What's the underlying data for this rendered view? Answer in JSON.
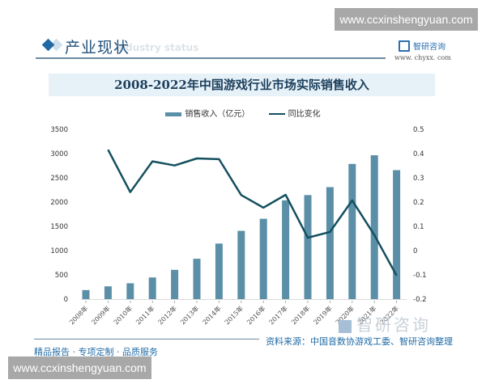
{
  "watermark": {
    "top": "www.ccxinshengyuan.com",
    "bottom": "www.ccxinshengyuan.com"
  },
  "section": {
    "title": "产业现状",
    "ghost_text": "Industry status"
  },
  "brand": {
    "name": "智研咨询",
    "url": "www. chyxx. com",
    "ghost_name": "智研咨询"
  },
  "footer": {
    "source": "资料来源：中国音数协游戏工委、智研咨询整理",
    "slogan": "精品报告 · 专项定制 · 品质服务"
  },
  "colors": {
    "bar": "#5b8fa8",
    "line": "#14505f",
    "title_band": "#e6f1f8",
    "accent": "#1f6aa5"
  },
  "chart_data": {
    "type": "bar+line",
    "title": "2008-2022年中国游戏行业市场实际销售收入",
    "legend": [
      "销售收入（亿元）",
      "同比变化"
    ],
    "legend_position": "top",
    "categories": [
      "2008年",
      "2009年",
      "2010年",
      "2011年",
      "2012年",
      "2013年",
      "2014年",
      "2015年",
      "2016年",
      "2017年",
      "2018年",
      "2019年",
      "2020年",
      "2021年",
      "2022年"
    ],
    "series": [
      {
        "name": "销售收入（亿元）",
        "type": "bar",
        "axis": "left",
        "values": [
          185.6,
          262.8,
          326.2,
          446.1,
          602.8,
          831.7,
          1144.8,
          1407.0,
          1655.7,
          2036.1,
          2144.4,
          2308.8,
          2786.9,
          2965.1,
          2658.8
        ]
      },
      {
        "name": "同比变化",
        "type": "line",
        "axis": "right",
        "values": [
          null,
          0.416,
          0.241,
          0.368,
          0.351,
          0.38,
          0.377,
          0.229,
          0.177,
          0.23,
          0.053,
          0.077,
          0.207,
          0.064,
          -0.103
        ]
      }
    ],
    "y_left": {
      "min": 0,
      "max": 3500,
      "ticks": [
        "0",
        "500",
        "1000",
        "1500",
        "2000",
        "2500",
        "3000",
        "3500"
      ]
    },
    "y_right": {
      "min": -0.2,
      "max": 0.5,
      "ticks": [
        "-0.2",
        "-0.1",
        "0",
        "0.1",
        "0.2",
        "0.3",
        "0.4",
        "0.5"
      ]
    },
    "xlabel": "",
    "ylabel": "",
    "grid": false
  }
}
